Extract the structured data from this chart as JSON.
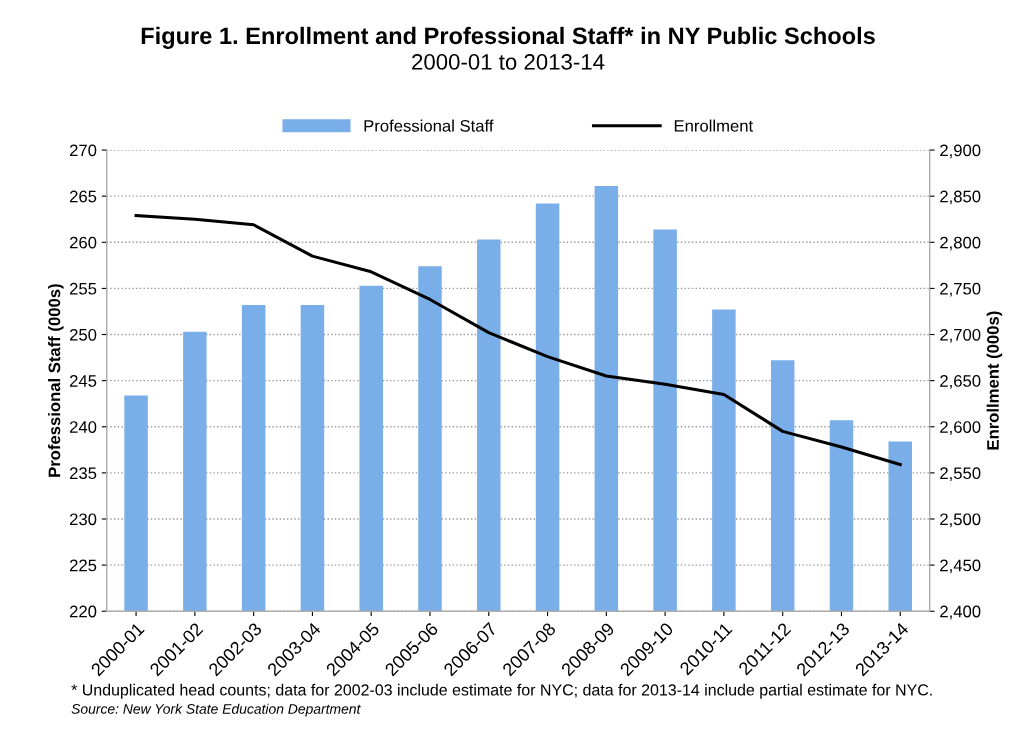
{
  "chart_data": {
    "type": "bar",
    "title": "Figure 1. Enrollment and Professional Staff* in NY Public Schools",
    "subtitle": "2000-01 to 2013-14",
    "ylabel": "Professional Staff (000s)",
    "y2label": "Enrollment (000s)",
    "categories": [
      "2000-01",
      "2001-02",
      "2002-03",
      "2003-04",
      "2004-05",
      "2005-06",
      "2006-07",
      "2007-08",
      "2008-09",
      "2009-10",
      "2010-11",
      "2011-12",
      "2012-13",
      "2013-14"
    ],
    "series": [
      {
        "name": "Professional Staff",
        "color": "#7aaee8",
        "values": [
          243.4,
          250.3,
          253.2,
          253.2,
          255.3,
          257.4,
          260.3,
          264.2,
          266.1,
          261.4,
          252.7,
          247.2,
          240.7,
          238.4
        ]
      },
      {
        "name": "Enrollment",
        "type": "line",
        "axis": "y2",
        "color": "#000000",
        "values": [
          2829,
          2825,
          2819,
          2785,
          2768,
          2738,
          2702,
          2676,
          2655,
          2646,
          2635,
          2595,
          2578,
          2559
        ]
      }
    ],
    "ylim": [
      220,
      270
    ],
    "yticks": [
      220,
      225,
      230,
      235,
      240,
      245,
      250,
      255,
      260,
      265,
      270
    ],
    "y2lim": [
      2400,
      2900
    ],
    "y2ticks": [
      {
        "value": 2400,
        "label": "2,400"
      },
      {
        "value": 2450,
        "label": "2,450"
      },
      {
        "value": 2500,
        "label": "2,500"
      },
      {
        "value": 2550,
        "label": "2,550"
      },
      {
        "value": 2600,
        "label": "2,600"
      },
      {
        "value": 2650,
        "label": "2,650"
      },
      {
        "value": 2700,
        "label": "2,700"
      },
      {
        "value": 2750,
        "label": "2,750"
      },
      {
        "value": 2800,
        "label": "2,800"
      },
      {
        "value": 2850,
        "label": "2,850"
      },
      {
        "value": 2900,
        "label": "2,900"
      }
    ],
    "grid": "y",
    "legend": "top",
    "marker": "none",
    "line_style": "solid",
    "annotations": [
      "* Unduplicated head counts; data for 2002-03 include estimate for NYC; data for 2013-14 include partial estimate for NYC.",
      "Source: New York State Education Department"
    ]
  }
}
